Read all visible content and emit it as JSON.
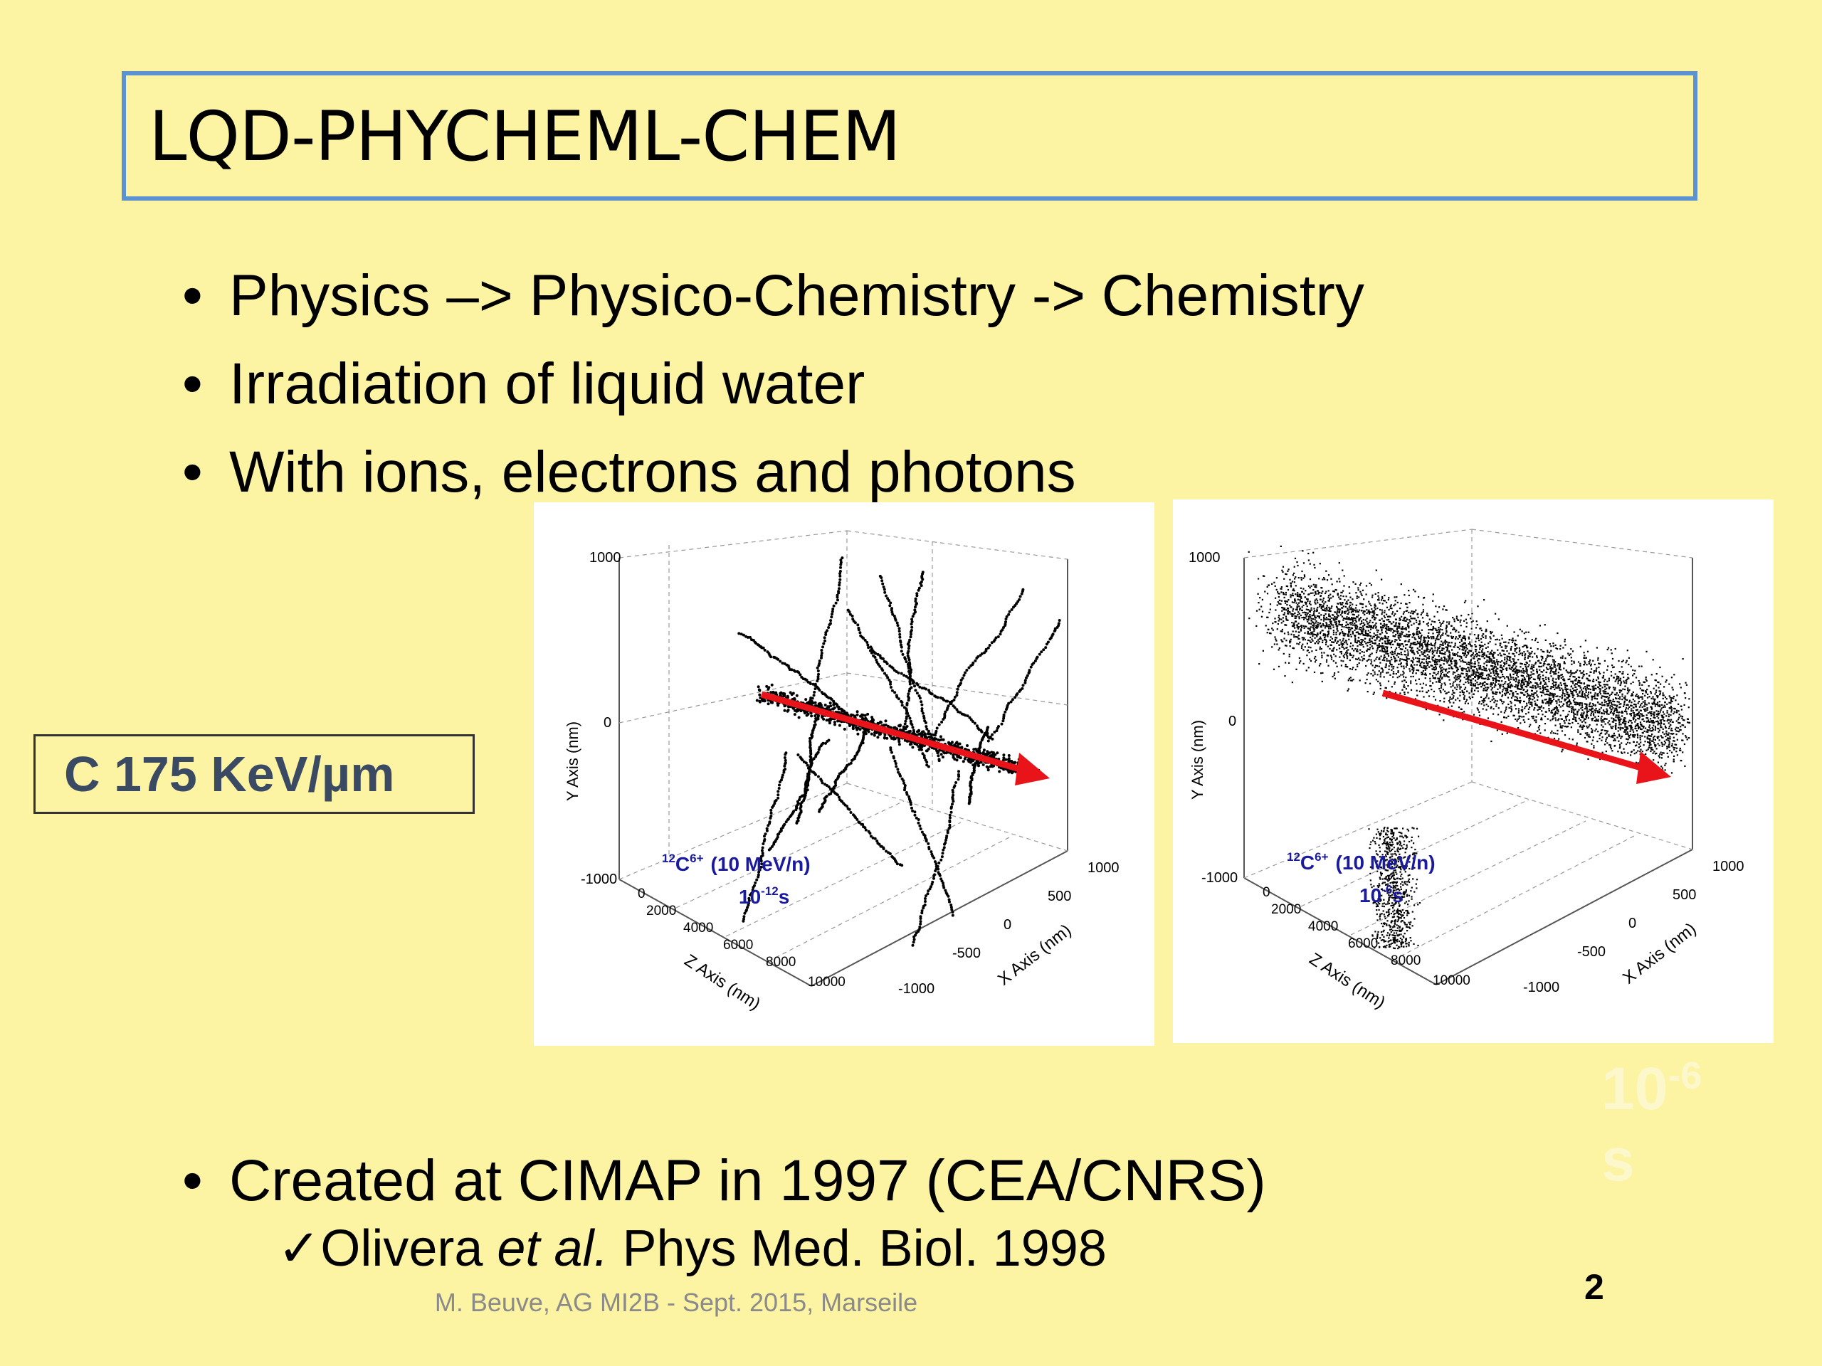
{
  "title": "LQD-PHYCHEML-CHEM",
  "bullets": [
    "Physics –> Physico-Chemistry -> Chemistry",
    "Irradiation of liquid water",
    "With ions, electrons and photons"
  ],
  "bullet_bottom": "Created at CIMAP in 1997 (CEA/CNRS)",
  "sub_bullet": {
    "check": "✓",
    "author": "Olivera ",
    "etal": "et al.",
    "journal": " Phys Med. Biol. 1998"
  },
  "label_box": "C  175 KeV/µm",
  "plots": [
    {
      "ion_mass": "12",
      "ion_sym": "C",
      "ion_charge": "6+",
      "energy": "(10 MeV/n)",
      "time_base": "10",
      "time_exp": "-12",
      "time_unit": "s",
      "y_axis_label": "Y Axis (nm)",
      "z_axis_label": "Z Axis (nm)",
      "x_axis_label": "X Axis (nm)",
      "y_ticks": [
        "1000",
        "0",
        "-1000"
      ],
      "z_ticks": [
        "0",
        "2000",
        "4000",
        "6000",
        "8000",
        "10000"
      ],
      "x_ticks": [
        "1000",
        "500",
        "0",
        "-500",
        "-1000"
      ]
    },
    {
      "ion_mass": "12",
      "ion_sym": "C",
      "ion_charge": "6+",
      "energy": "(10 MeV/n)",
      "time_base": "10",
      "time_exp": "-6",
      "time_unit": "s",
      "y_axis_label": "Y Axis (nm)",
      "z_axis_label": "Z Axis (nm)",
      "x_axis_label": "X Axis (nm)",
      "y_ticks": [
        "1000",
        "0",
        "-1000"
      ],
      "z_ticks": [
        "0",
        "2000",
        "4000",
        "6000",
        "8000",
        "10000"
      ],
      "x_ticks": [
        "1000",
        "500",
        "0",
        "-500",
        "-1000"
      ]
    }
  ],
  "ghost_label": {
    "base": "10",
    "exp": "-6",
    "unit": "s"
  },
  "footer": "M. Beuve,  AG MI2B - Sept. 2015, Marseile",
  "page_number": "2",
  "colors": {
    "background": "#fcf3a3",
    "title_border": "#5b92d2",
    "arrow": "#e8141a",
    "ion_label": "#1a1a9e"
  }
}
